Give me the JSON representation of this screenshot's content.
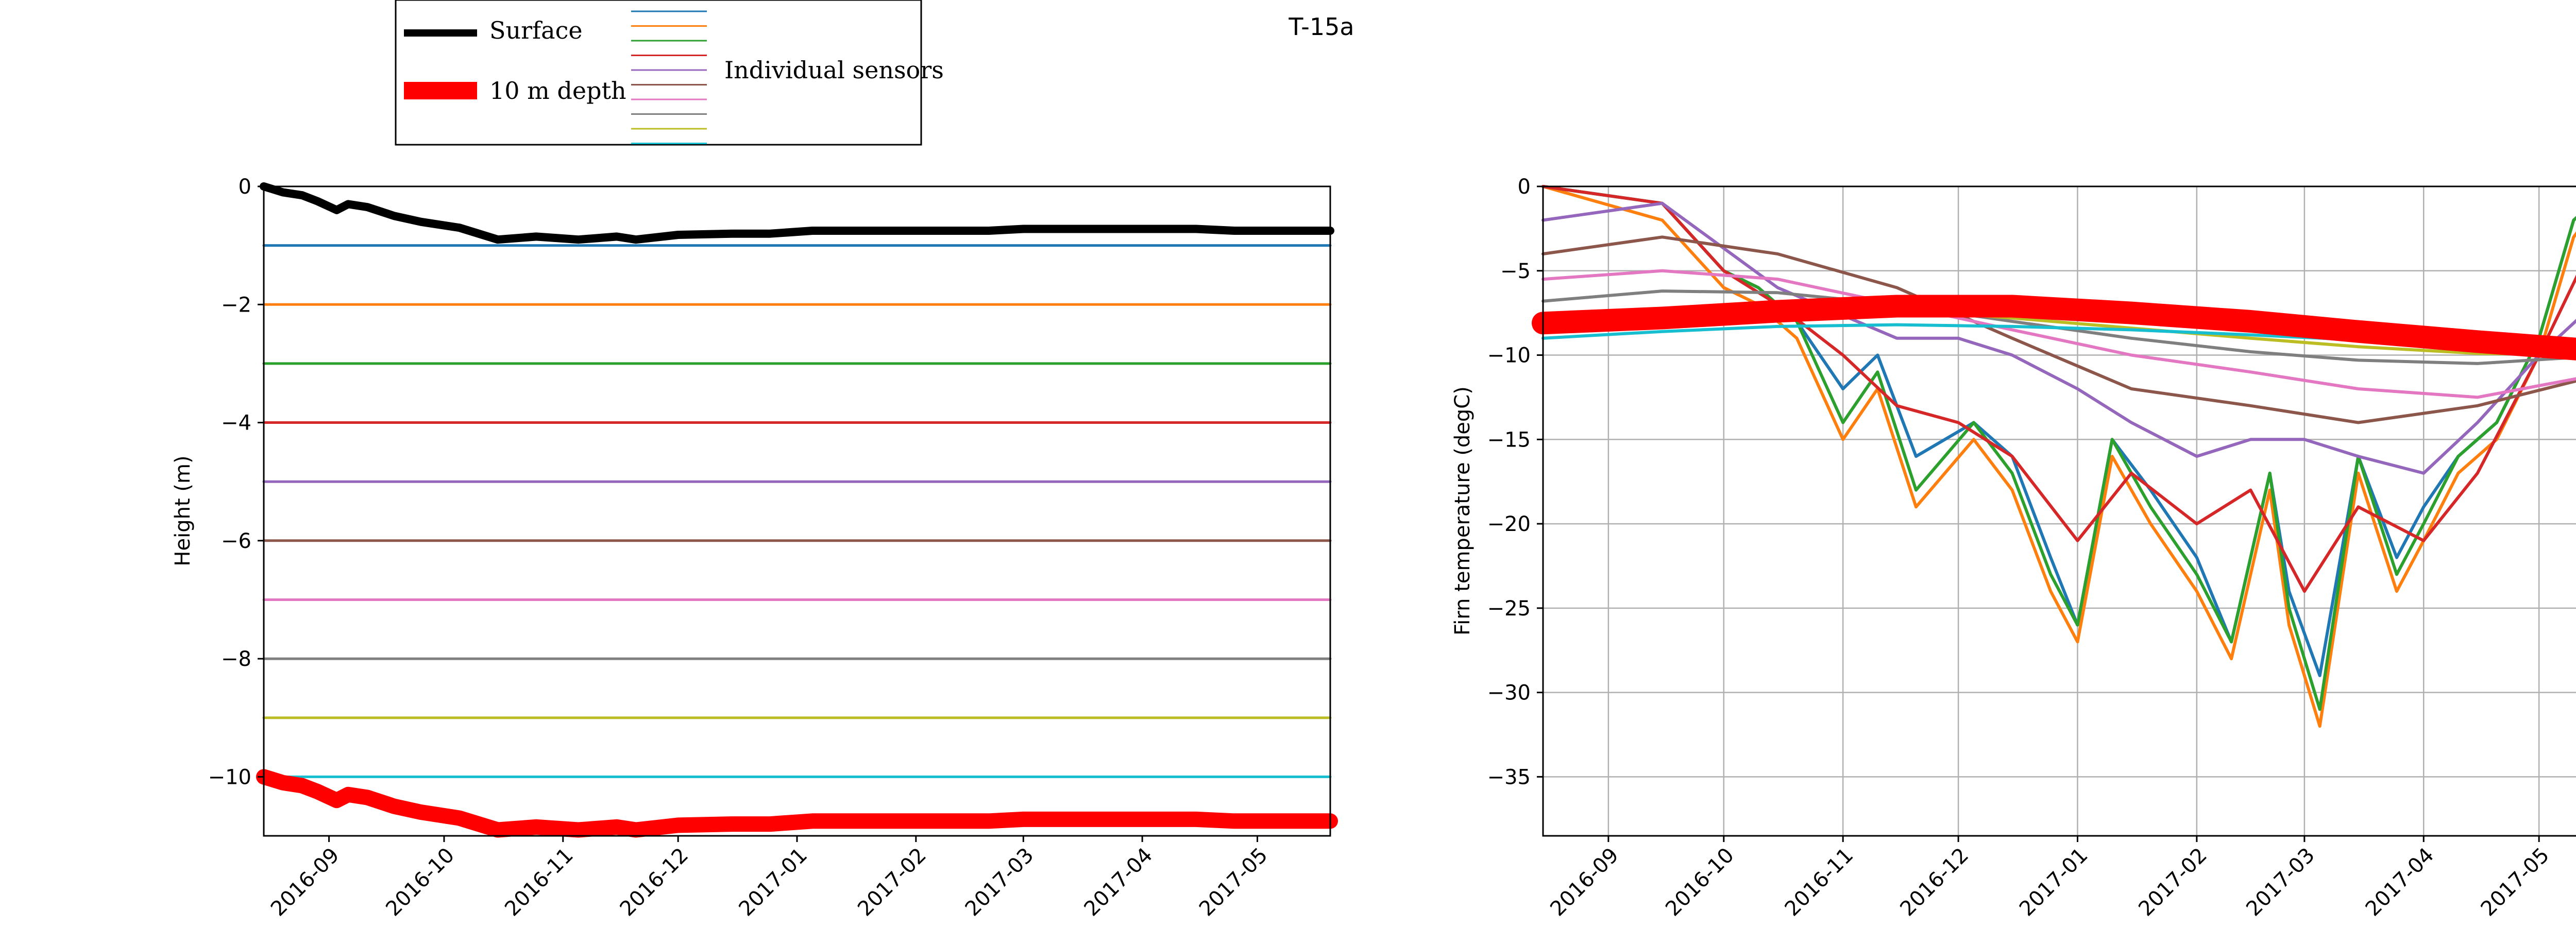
{
  "figure_title": "T-15a",
  "legend": {
    "surface_label": "Surface",
    "depth_label": "10 m depth",
    "sensors_label": "Individual sensors",
    "sensor_line_colors": [
      "#1f77b4",
      "#ff7f0e",
      "#2ca02c",
      "#d62728",
      "#9467bd",
      "#8c564b",
      "#e377c2",
      "#7f7f7f",
      "#bcbd22",
      "#17becf"
    ]
  },
  "colors": {
    "surface": "#000000",
    "depth_10m": "#ff0000",
    "sensors": [
      "#1f77b4",
      "#ff7f0e",
      "#2ca02c",
      "#d62728",
      "#9467bd",
      "#8c564b",
      "#e377c2",
      "#7f7f7f",
      "#bcbd22",
      "#17becf"
    ]
  },
  "chart_data": [
    {
      "type": "line",
      "ylabel": "Height (m)",
      "xlabel": "",
      "xlim": [
        "2016-08-15",
        "2017-05-20"
      ],
      "ylim": [
        -11,
        0
      ],
      "grid": false,
      "x_ticks": [
        "2016-09",
        "2016-10",
        "2016-11",
        "2016-12",
        "2017-01",
        "2017-02",
        "2017-03",
        "2017-04",
        "2017-05"
      ],
      "y_ticks": [
        0,
        -2,
        -4,
        -6,
        -8,
        -10
      ],
      "series": [
        {
          "name": "Surface",
          "x": [
            "2016-08-15",
            "2016-08-20",
            "2016-08-25",
            "2016-08-29",
            "2016-09-03",
            "2016-09-06",
            "2016-09-11",
            "2016-09-18",
            "2016-09-25",
            "2016-10-05",
            "2016-10-15",
            "2016-10-25",
            "2016-11-05",
            "2016-11-15",
            "2016-11-20",
            "2016-12-01",
            "2016-12-15",
            "2016-12-25",
            "2017-01-05",
            "2017-01-20",
            "2017-02-05",
            "2017-02-20",
            "2017-03-01",
            "2017-03-15",
            "2017-04-01",
            "2017-04-15",
            "2017-04-25",
            "2017-05-05",
            "2017-05-20"
          ],
          "values": [
            0.0,
            -0.1,
            -0.15,
            -0.25,
            -0.4,
            -0.3,
            -0.35,
            -0.5,
            -0.6,
            -0.7,
            -0.9,
            -0.85,
            -0.9,
            -0.85,
            -0.9,
            -0.82,
            -0.8,
            -0.8,
            -0.75,
            -0.75,
            -0.75,
            -0.75,
            -0.72,
            -0.72,
            -0.72,
            -0.72,
            -0.75,
            -0.75,
            -0.75
          ]
        },
        {
          "name": "10 m depth",
          "x": [
            "2016-08-15",
            "2016-08-20",
            "2016-08-25",
            "2016-08-29",
            "2016-09-03",
            "2016-09-06",
            "2016-09-11",
            "2016-09-18",
            "2016-09-25",
            "2016-10-05",
            "2016-10-15",
            "2016-10-25",
            "2016-11-05",
            "2016-11-15",
            "2016-11-20",
            "2016-12-01",
            "2016-12-15",
            "2016-12-25",
            "2017-01-05",
            "2017-01-20",
            "2017-02-05",
            "2017-02-20",
            "2017-03-01",
            "2017-03-15",
            "2017-04-01",
            "2017-04-15",
            "2017-04-25",
            "2017-05-05",
            "2017-05-20"
          ],
          "values": [
            -10.0,
            -10.1,
            -10.15,
            -10.25,
            -10.4,
            -10.3,
            -10.35,
            -10.5,
            -10.6,
            -10.7,
            -10.9,
            -10.85,
            -10.9,
            -10.85,
            -10.9,
            -10.82,
            -10.8,
            -10.8,
            -10.75,
            -10.75,
            -10.75,
            -10.75,
            -10.72,
            -10.72,
            -10.72,
            -10.72,
            -10.75,
            -10.75,
            -10.75
          ]
        },
        {
          "x": [
            "2016-08-15",
            "2017-05-20"
          ],
          "values": [
            -1,
            -1
          ]
        },
        {
          "x": [
            "2016-08-15",
            "2017-05-20"
          ],
          "values": [
            -2,
            -2
          ]
        },
        {
          "x": [
            "2016-08-15",
            "2017-05-20"
          ],
          "values": [
            -3,
            -3
          ]
        },
        {
          "x": [
            "2016-08-15",
            "2017-05-20"
          ],
          "values": [
            -4,
            -4
          ]
        },
        {
          "x": [
            "2016-08-15",
            "2017-05-20"
          ],
          "values": [
            -5,
            -5
          ]
        },
        {
          "x": [
            "2016-08-15",
            "2017-05-20"
          ],
          "values": [
            -6,
            -6
          ]
        },
        {
          "x": [
            "2016-08-15",
            "2017-05-20"
          ],
          "values": [
            -7,
            -7
          ]
        },
        {
          "x": [
            "2016-08-15",
            "2017-05-20"
          ],
          "values": [
            -8,
            -8
          ]
        },
        {
          "x": [
            "2016-08-15",
            "2017-05-20"
          ],
          "values": [
            -9,
            -9
          ]
        },
        {
          "x": [
            "2016-08-15",
            "2017-05-20"
          ],
          "values": [
            -10,
            -10
          ]
        }
      ]
    },
    {
      "type": "line",
      "ylabel": "Firn temperature (degC)",
      "xlabel": "",
      "xlim": [
        "2016-08-15",
        "2017-05-20"
      ],
      "ylim": [
        -38.5,
        0
      ],
      "grid": true,
      "x_ticks": [
        "2016-09",
        "2016-10",
        "2016-11",
        "2016-12",
        "2017-01",
        "2017-02",
        "2017-03",
        "2017-04",
        "2017-05"
      ],
      "y_ticks": [
        0,
        -5,
        -10,
        -15,
        -20,
        -25,
        -30,
        -35
      ],
      "series": [
        {
          "x": [
            "2016-08-15",
            "2016-09-15",
            "2016-10-01",
            "2016-10-10",
            "2016-10-20",
            "2016-11-01",
            "2016-11-10",
            "2016-11-20",
            "2016-12-05",
            "2016-12-15",
            "2016-12-25",
            "2017-01-01",
            "2017-01-10",
            "2017-01-20",
            "2017-02-01",
            "2017-02-10",
            "2017-02-20",
            "2017-02-25",
            "2017-03-05",
            "2017-03-15",
            "2017-03-25",
            "2017-04-01",
            "2017-04-10",
            "2017-04-20",
            "2017-05-01",
            "2017-05-10",
            "2017-05-20"
          ],
          "values": [
            0,
            -1,
            -5,
            -6,
            -8,
            -12,
            -10,
            -16,
            -14,
            -16,
            -22,
            -26,
            -15,
            -18,
            -22,
            -27,
            -17,
            -24,
            -29,
            -16,
            -22,
            -19,
            -16,
            -14,
            -9,
            -2,
            0
          ]
        },
        {
          "x": [
            "2016-08-15",
            "2016-09-15",
            "2016-10-01",
            "2016-10-10",
            "2016-10-20",
            "2016-11-01",
            "2016-11-10",
            "2016-11-20",
            "2016-12-05",
            "2016-12-15",
            "2016-12-25",
            "2017-01-01",
            "2017-01-10",
            "2017-01-20",
            "2017-02-01",
            "2017-02-10",
            "2017-02-20",
            "2017-02-25",
            "2017-03-05",
            "2017-03-15",
            "2017-03-25",
            "2017-04-01",
            "2017-04-10",
            "2017-04-20",
            "2017-05-01",
            "2017-05-10",
            "2017-05-20"
          ],
          "values": [
            0,
            -2,
            -6,
            -7,
            -9,
            -15,
            -12,
            -19,
            -15,
            -18,
            -24,
            -27,
            -16,
            -20,
            -24,
            -28,
            -18,
            -26,
            -32,
            -17,
            -24,
            -21,
            -17,
            -15,
            -10,
            -3,
            0
          ]
        },
        {
          "x": [
            "2016-08-15",
            "2016-09-15",
            "2016-10-01",
            "2016-10-10",
            "2016-10-20",
            "2016-11-01",
            "2016-11-10",
            "2016-11-20",
            "2016-12-05",
            "2016-12-15",
            "2016-12-25",
            "2017-01-01",
            "2017-01-10",
            "2017-01-20",
            "2017-02-01",
            "2017-02-10",
            "2017-02-20",
            "2017-02-25",
            "2017-03-05",
            "2017-03-15",
            "2017-03-25",
            "2017-04-01",
            "2017-04-10",
            "2017-04-20",
            "2017-05-01",
            "2017-05-10",
            "2017-05-20"
          ],
          "values": [
            0,
            -1,
            -5,
            -6,
            -8,
            -14,
            -11,
            -18,
            -14,
            -17,
            -23,
            -26,
            -15,
            -19,
            -23,
            -27,
            -17,
            -25,
            -31,
            -16,
            -23,
            -20,
            -16,
            -14,
            -9,
            -2,
            0
          ]
        },
        {
          "x": [
            "2016-08-15",
            "2016-09-15",
            "2016-10-01",
            "2016-10-15",
            "2016-11-01",
            "2016-11-15",
            "2016-12-01",
            "2016-12-15",
            "2017-01-01",
            "2017-01-15",
            "2017-02-01",
            "2017-02-15",
            "2017-03-01",
            "2017-03-15",
            "2017-04-01",
            "2017-04-15",
            "2017-05-01",
            "2017-05-20"
          ],
          "values": [
            0,
            -1,
            -5,
            -7,
            -10,
            -13,
            -14,
            -16,
            -21,
            -17,
            -20,
            -18,
            -24,
            -19,
            -21,
            -17,
            -10,
            -1
          ]
        },
        {
          "x": [
            "2016-08-15",
            "2016-09-15",
            "2016-10-15",
            "2016-11-15",
            "2016-12-01",
            "2016-12-15",
            "2017-01-01",
            "2017-01-15",
            "2017-02-01",
            "2017-02-15",
            "2017-03-01",
            "2017-03-15",
            "2017-04-01",
            "2017-04-15",
            "2017-05-01",
            "2017-05-20"
          ],
          "values": [
            -2,
            -1,
            -6,
            -9,
            -9,
            -10,
            -12,
            -14,
            -16,
            -15,
            -15,
            -16,
            -17,
            -14,
            -10,
            -6
          ]
        },
        {
          "x": [
            "2016-08-15",
            "2016-09-15",
            "2016-10-15",
            "2016-11-15",
            "2016-12-15",
            "2017-01-15",
            "2017-02-15",
            "2017-03-15",
            "2017-04-15",
            "2017-05-20"
          ],
          "values": [
            -4,
            -3,
            -4,
            -6,
            -9,
            -12,
            -13,
            -14,
            -13,
            -11
          ]
        },
        {
          "x": [
            "2016-08-15",
            "2016-09-15",
            "2016-10-15",
            "2016-11-15",
            "2016-12-15",
            "2017-01-15",
            "2017-02-15",
            "2017-03-15",
            "2017-04-15",
            "2017-05-20"
          ],
          "values": [
            -5.5,
            -5,
            -5.5,
            -7,
            -8.5,
            -10,
            -11,
            -12,
            -12.5,
            -11
          ]
        },
        {
          "x": [
            "2016-08-15",
            "2016-09-15",
            "2016-10-15",
            "2016-11-15",
            "2016-12-15",
            "2017-01-15",
            "2017-02-15",
            "2017-03-15",
            "2017-04-15",
            "2017-05-20"
          ],
          "values": [
            -6.8,
            -6.2,
            -6.3,
            -7,
            -8,
            -9,
            -9.8,
            -10.3,
            -10.5,
            -10
          ]
        },
        {
          "x": [
            "2016-08-15",
            "2016-09-15",
            "2016-10-15",
            "2016-11-15",
            "2016-12-15",
            "2017-01-15",
            "2017-02-15",
            "2017-03-15",
            "2017-04-15",
            "2017-05-20"
          ],
          "values": [
            -8,
            -7.3,
            -7,
            -7.3,
            -7.8,
            -8.4,
            -9,
            -9.5,
            -9.9,
            -10
          ]
        },
        {
          "x": [
            "2016-08-15",
            "2016-09-15",
            "2016-10-15",
            "2016-11-15",
            "2016-12-15",
            "2017-01-15",
            "2017-02-15",
            "2017-03-15",
            "2017-04-15",
            "2017-05-20"
          ],
          "values": [
            -9,
            -8.6,
            -8.3,
            -8.2,
            -8.3,
            -8.5,
            -8.8,
            -9.1,
            -9.3,
            -9.5
          ]
        },
        {
          "name": "10 m depth",
          "x": [
            "2016-08-15",
            "2016-09-15",
            "2016-10-15",
            "2016-11-15",
            "2016-12-15",
            "2017-01-15",
            "2017-02-15",
            "2017-03-15",
            "2017-04-15",
            "2017-05-20"
          ],
          "values": [
            -8.1,
            -7.8,
            -7.4,
            -7.1,
            -7.1,
            -7.5,
            -8.0,
            -8.6,
            -9.2,
            -9.8
          ]
        }
      ]
    }
  ]
}
